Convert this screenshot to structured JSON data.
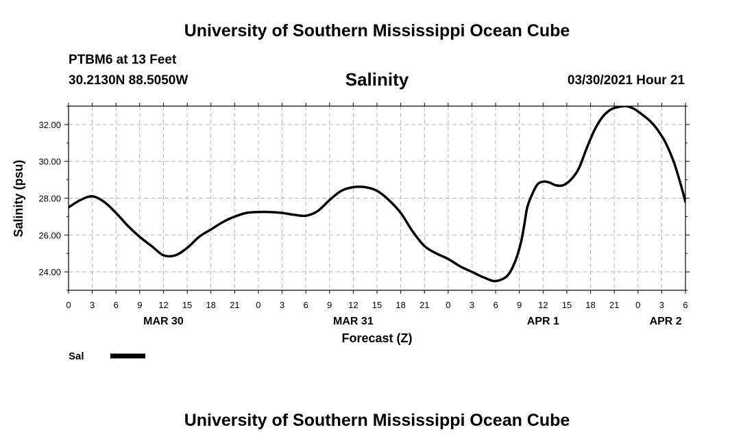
{
  "header": {
    "title": "University of Southern Mississippi Ocean Cube",
    "station": "PTBM6 at 13 Feet",
    "coords": "30.2130N  88.5050W",
    "variable": "Salinity",
    "datetime": "03/30/2021 Hour 21"
  },
  "footer": {
    "title": "University of Southern Mississippi Ocean Cube"
  },
  "chart_data": {
    "type": "line",
    "title": "Salinity",
    "xlabel": "Forecast (Z)",
    "ylabel": "Salinity (psu)",
    "xlim": [
      0,
      78
    ],
    "ylim": [
      23.0,
      33.0
    ],
    "yticks": [
      24,
      26,
      28,
      30,
      32
    ],
    "ytick_labels": [
      "24.00",
      "26.00",
      "28.00",
      "30.00",
      "32.00"
    ],
    "xtick_hours": [
      0,
      3,
      6,
      9,
      12,
      15,
      18,
      21,
      24,
      27,
      30,
      33,
      36,
      39,
      42,
      45,
      48,
      51,
      54,
      57,
      60,
      63,
      66,
      69,
      72,
      75,
      78
    ],
    "xtick_labels": [
      "0",
      "3",
      "6",
      "9",
      "12",
      "15",
      "18",
      "21",
      "0",
      "3",
      "6",
      "9",
      "12",
      "15",
      "18",
      "21",
      "0",
      "3",
      "6",
      "9",
      "12",
      "15",
      "18",
      "21",
      "0",
      "3",
      "6"
    ],
    "days": [
      {
        "label": "MAR 30",
        "hour": 12
      },
      {
        "label": "MAR 31",
        "hour": 36
      },
      {
        "label": "APR 1",
        "hour": 60
      },
      {
        "label": "APR 2",
        "hour": 75.5
      }
    ],
    "grid": true,
    "colors": {
      "line": "#000000",
      "grid": "#b4b4b4"
    },
    "series": [
      {
        "name": "Sal",
        "x": [
          0,
          1.5,
          3,
          4.5,
          6,
          7.5,
          9,
          10.5,
          12,
          13.5,
          15,
          16.5,
          18,
          19.5,
          21,
          22.5,
          24,
          25.5,
          27,
          28.5,
          30,
          31.5,
          33,
          34.5,
          36,
          37.5,
          39,
          40.5,
          42,
          43.5,
          45,
          46.5,
          48,
          49.5,
          51,
          52.5,
          54,
          55.5,
          56.5,
          57.2,
          57.6,
          58,
          58.6,
          59.3,
          60,
          60.8,
          61.6,
          62.5,
          63.5,
          64.5,
          65.5,
          66.5,
          67.5,
          68.5,
          69.5,
          70.5,
          71.5,
          72.5,
          73.5,
          74.5,
          75.5,
          76.5,
          77.3,
          78
        ],
        "y": [
          27.5,
          27.9,
          28.1,
          27.8,
          27.2,
          26.5,
          25.9,
          25.4,
          24.9,
          24.9,
          25.3,
          25.9,
          26.3,
          26.7,
          27.0,
          27.2,
          27.25,
          27.25,
          27.2,
          27.1,
          27.05,
          27.3,
          27.9,
          28.4,
          28.6,
          28.6,
          28.4,
          27.9,
          27.2,
          26.2,
          25.4,
          25.0,
          24.7,
          24.3,
          24.0,
          23.7,
          23.5,
          23.8,
          24.6,
          25.6,
          26.5,
          27.5,
          28.2,
          28.75,
          28.9,
          28.85,
          28.7,
          28.7,
          29.0,
          29.6,
          30.7,
          31.7,
          32.4,
          32.8,
          32.95,
          33.0,
          32.85,
          32.55,
          32.2,
          31.7,
          31.0,
          30.0,
          28.9,
          27.8
        ]
      }
    ]
  }
}
